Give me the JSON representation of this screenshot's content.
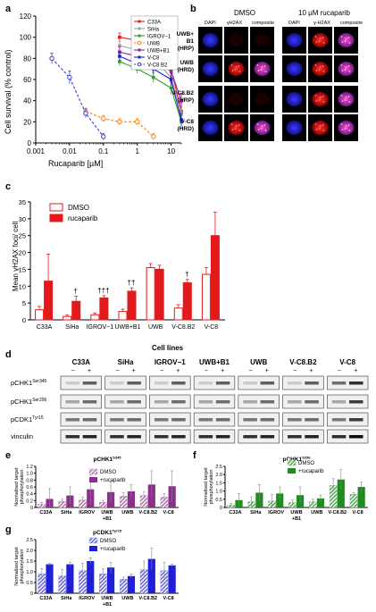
{
  "panels": [
    "a",
    "b",
    "c",
    "d",
    "e",
    "f",
    "g"
  ],
  "chart_data": [
    {
      "id": "a",
      "type": "line",
      "xlabel": "Rucaparib [µM]",
      "ylabel": "Cell survival (% control)",
      "xscale": "log",
      "xlim": [
        0.001,
        20
      ],
      "ylim": [
        0,
        120
      ],
      "xticks": [
        "0.001",
        "0.01",
        "0.1",
        "1",
        "10"
      ],
      "yticks": [
        0,
        20,
        40,
        60,
        80,
        100,
        120
      ],
      "legend_position": "top-right",
      "series": [
        {
          "name": "C33A",
          "color": "#e41a1c",
          "dashed": false,
          "marker": "square",
          "x": [
            0.3,
            1,
            3,
            10,
            20
          ],
          "y": [
            100,
            97,
            88,
            70,
            30
          ],
          "err": [
            4,
            4,
            6,
            8,
            8
          ]
        },
        {
          "name": "SiHa",
          "color": "#a0a0a0",
          "dashed": false,
          "marker": "square",
          "x": [
            0.3,
            1,
            3,
            10,
            20
          ],
          "y": [
            92,
            88,
            80,
            62,
            28
          ],
          "err": [
            4,
            4,
            5,
            7,
            7
          ]
        },
        {
          "name": "IGROV−1",
          "color": "#2ca02c",
          "dashed": false,
          "marker": "square",
          "x": [
            0.3,
            1,
            3,
            10,
            20
          ],
          "y": [
            77,
            70,
            62,
            52,
            20
          ],
          "err": [
            4,
            4,
            5,
            6,
            6
          ]
        },
        {
          "name": "UWB",
          "color": "#ff7f0e",
          "dashed": true,
          "marker": "circle",
          "x": [
            0.03,
            0.1,
            0.3,
            1,
            3
          ],
          "y": [
            30,
            23,
            20,
            20,
            6
          ],
          "err": [
            3,
            3,
            3,
            3,
            3
          ]
        },
        {
          "name": "UWB+B1",
          "color": "#9e1b9e",
          "dashed": false,
          "marker": "square",
          "x": [
            0.3,
            1,
            3,
            10,
            20
          ],
          "y": [
            86,
            82,
            78,
            68,
            40
          ],
          "err": [
            5,
            5,
            6,
            7,
            7
          ]
        },
        {
          "name": "V-C8",
          "color": "#1f1fd6",
          "dashed": false,
          "marker": "square",
          "x": [
            0.3,
            1,
            3,
            10,
            20
          ],
          "y": [
            82,
            75,
            70,
            60,
            22
          ],
          "err": [
            4,
            4,
            5,
            6,
            6
          ]
        },
        {
          "name": "V-C8 B2",
          "color": "#3b3bde",
          "dashed": true,
          "marker": "circle",
          "x": [
            0.003,
            0.01,
            0.03,
            0.1
          ],
          "y": [
            80,
            62,
            28,
            6
          ],
          "err": [
            5,
            6,
            4,
            3
          ]
        }
      ]
    },
    {
      "id": "c",
      "type": "bar",
      "xlabel": "Cell lines",
      "ylabel": "Mean γH2AX foci/ cell",
      "ylim": [
        0,
        35
      ],
      "yticks": [
        0,
        5,
        10,
        15,
        20,
        25,
        30,
        35
      ],
      "categories": [
        "C33A",
        "SiHa",
        "IGROV−1",
        "UWB+B1",
        "UWB",
        "V-C8.B2",
        "V-C8"
      ],
      "series": [
        {
          "name": "DMSO",
          "color": "#ffffff",
          "values": [
            3,
            1,
            1.5,
            2.5,
            15.5,
            3.5,
            13.5
          ],
          "err": [
            1,
            0.5,
            0.5,
            0.7,
            1.2,
            1,
            2
          ]
        },
        {
          "name": "rucaparib",
          "color": "#e31a1c",
          "values": [
            11.5,
            5.5,
            6.5,
            8.5,
            15,
            11,
            25
          ],
          "err": [
            8,
            1.5,
            0.7,
            1,
            1.2,
            1,
            7
          ]
        }
      ],
      "annotations": [
        "",
        "†",
        "†††",
        "††",
        "",
        "†",
        ""
      ]
    },
    {
      "id": "e",
      "type": "bar",
      "title": "pCHK1",
      "title_sup": "S345",
      "ylabel": "Normalised target phosphorylation",
      "ylim": [
        0,
        1.2
      ],
      "yticks": [
        "0",
        "0.2",
        "0.4",
        "0.6",
        "0.8",
        "1.0",
        "1.2"
      ],
      "categories": [
        "C33A",
        "SiHa",
        "IGROV",
        "UWB +B1",
        "UWB",
        "V-C8.B2",
        "V-C8"
      ],
      "series": [
        {
          "name": "DMSO",
          "color": "#c77dc7",
          "hatched": true,
          "values": [
            0.1,
            0.18,
            0.22,
            0.15,
            0.33,
            0.35,
            0.3
          ],
          "err": [
            0.05,
            0.06,
            0.08,
            0.06,
            0.1,
            0.1,
            0.1
          ]
        },
        {
          "name": "+rucaparib",
          "color": "#8b2f8b",
          "hatched": false,
          "values": [
            0.25,
            0.35,
            0.53,
            0.45,
            0.47,
            0.67,
            0.62
          ],
          "err": [
            0.3,
            0.25,
            0.45,
            0.3,
            0.2,
            0.4,
            0.45
          ]
        }
      ]
    },
    {
      "id": "f",
      "type": "bar",
      "title": "pCHK1",
      "title_sup": "S296",
      "ylabel": "Normalised target phosphorylation",
      "ylim": [
        0,
        2.5
      ],
      "yticks": [
        "0",
        "0.5",
        "1.0",
        "1.5",
        "2.0",
        "2.5"
      ],
      "categories": [
        "C33A",
        "SiHa",
        "IGROV",
        "UWB +B1",
        "UWB",
        "V-C8.B2",
        "V-C8"
      ],
      "series": [
        {
          "name": "DMSO",
          "color": "#7ac07a",
          "hatched": true,
          "values": [
            0.15,
            0.35,
            0.4,
            0.3,
            0.35,
            1.35,
            0.8
          ],
          "err": [
            0.1,
            0.3,
            0.4,
            0.15,
            0.15,
            0.4,
            0.1
          ]
        },
        {
          "name": "+rucaparib",
          "color": "#1e8c1e",
          "hatched": false,
          "values": [
            0.45,
            0.9,
            0.85,
            0.75,
            0.55,
            1.7,
            1.25
          ],
          "err": [
            0.4,
            0.5,
            0.4,
            0.5,
            0.2,
            0.6,
            0.3
          ]
        }
      ]
    },
    {
      "id": "g",
      "type": "bar",
      "title": "pCDK1",
      "title_sup": "Tyr15",
      "ylabel": "Normalised target phosphorylation",
      "ylim": [
        0,
        2.5
      ],
      "yticks": [
        "0",
        "0.5",
        "1.0",
        "1.5",
        "2.0",
        "2.5"
      ],
      "categories": [
        "C33A",
        "SiHa",
        "IGROV",
        "UWB +B1",
        "UWB",
        "V-C8.B2",
        "V-C8"
      ],
      "series": [
        {
          "name": "DMSO",
          "color": "#7a7ae6",
          "hatched": true,
          "values": [
            0.9,
            0.8,
            1.05,
            0.9,
            0.65,
            1.1,
            1.05
          ],
          "err": [
            0.25,
            0.3,
            0.35,
            0.25,
            0.1,
            0.4,
            0.4
          ]
        },
        {
          "name": "+rucaparib",
          "color": "#1f1fd6",
          "hatched": false,
          "values": [
            1.35,
            1.35,
            1.5,
            1.2,
            0.8,
            1.6,
            1.3
          ],
          "err": [
            0.05,
            0.1,
            0.15,
            0.25,
            0.1,
            0.5,
            0.05
          ]
        }
      ]
    }
  ],
  "panel_b": {
    "group_dmso": "DMSO",
    "group_ruca": "10 μM  rucaparib",
    "col_dapi": "DAPI",
    "col_h2ax": "γH2AX",
    "col_composite": "composite",
    "col_dapi2": "DAPI",
    "col_h2ax2": "γ-H2AX",
    "col_composite2": "composite",
    "rows": [
      {
        "l1": "UWB+",
        "l2": "B1",
        "l3": "(HRP)"
      },
      {
        "l1": "UWB",
        "l2": "(HRD)",
        "l3": ""
      },
      {
        "l1": "V-C8.B2",
        "l2": "(HRP)",
        "l3": ""
      },
      {
        "l1": "V-C8",
        "l2": "(HRD)",
        "l3": ""
      }
    ]
  },
  "panel_d": {
    "cell_lines": [
      "C33A",
      "SiHa",
      "IGROV−1",
      "UWB+B1",
      "UWB",
      "V-C8.B2",
      "V-C8"
    ],
    "treat_minus": "−",
    "treat_plus": "+",
    "rows": [
      {
        "label": "pCHK1",
        "sup": "Ser345"
      },
      {
        "label": "pCHK1",
        "sup": "Ser296"
      },
      {
        "label": "pCDK1",
        "sup": "Tyr15"
      },
      {
        "label": "vinculin",
        "sup": ""
      }
    ]
  }
}
